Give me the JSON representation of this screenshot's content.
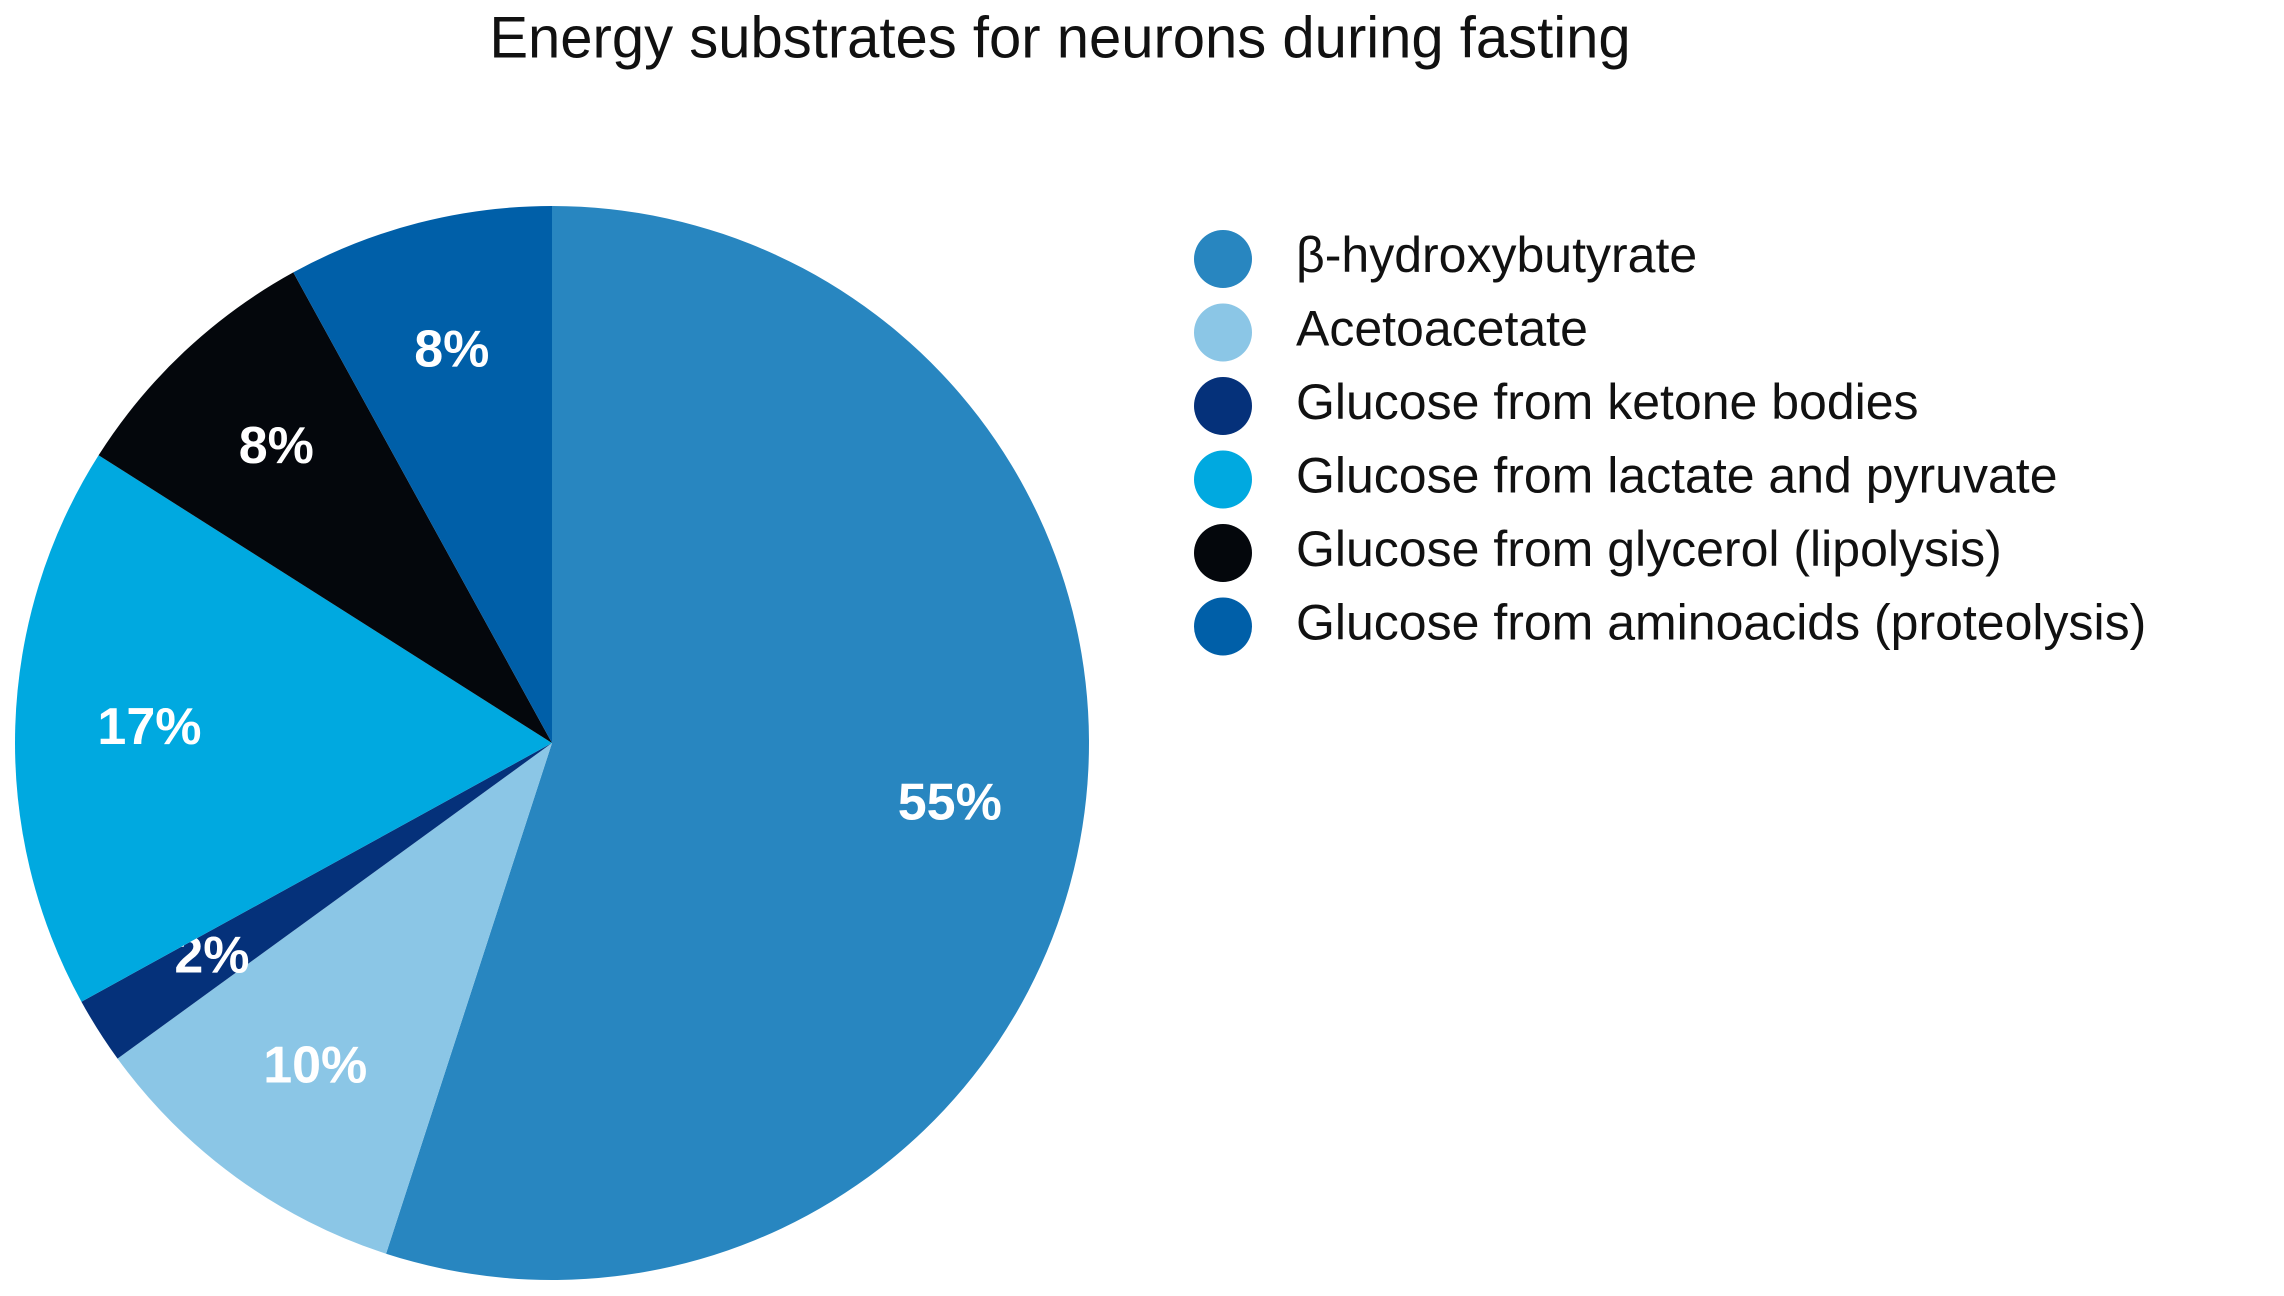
{
  "chart_data": {
    "type": "pie",
    "title": "Energy substrates for neurons during fasting",
    "categories": [
      "β-hydroxybutyrate",
      "Acetoacetate",
      "Glucose from ketone bodies",
      "Glucose from lactate and pyruvate",
      "Glucose from glycerol (lipolysis)",
      "Glucose from aminoacids (proteolysis)"
    ],
    "values": [
      55,
      10,
      2,
      17,
      8,
      8
    ],
    "colors": [
      "#2886c0",
      "#8bc6e6",
      "#05317a",
      "#00a9e0",
      "#04070c",
      "#005fa8"
    ],
    "legend": "right"
  }
}
